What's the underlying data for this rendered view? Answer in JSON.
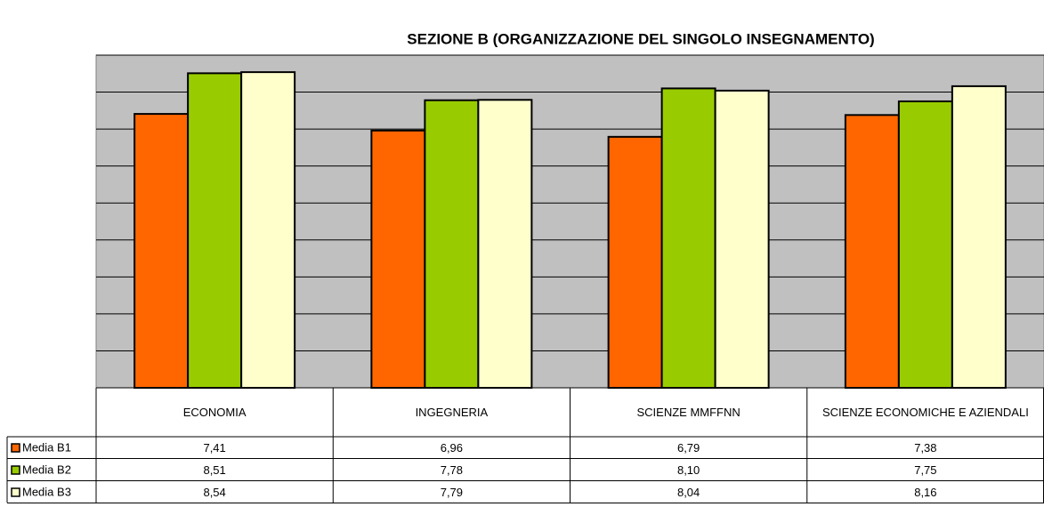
{
  "chart_data": {
    "type": "bar",
    "title": "SEZIONE B (ORGANIZZAZIONE DEL SINGOLO INSEGNAMENTO)",
    "categories": [
      "ECONOMIA",
      "INGEGNERIA",
      "SCIENZE MMFFNN",
      "SCIENZE ECONOMICHE E AZIENDALI"
    ],
    "series": [
      {
        "name": "Media B1",
        "color": "#ff6600",
        "values": [
          7.41,
          6.96,
          6.79,
          7.38
        ],
        "value_labels": [
          "7,41",
          "6,96",
          "6,79",
          "7,38"
        ]
      },
      {
        "name": "Media B2",
        "color": "#99cc00",
        "values": [
          8.51,
          7.78,
          8.1,
          7.75
        ],
        "value_labels": [
          "8,51",
          "7,78",
          "8,10",
          "7,75"
        ]
      },
      {
        "name": "Media B3",
        "color": "#ffffcc",
        "values": [
          8.54,
          7.79,
          8.04,
          8.16
        ],
        "value_labels": [
          "8,54",
          "7,79",
          "8,04",
          "8,16"
        ]
      }
    ],
    "ylim": [
      0,
      9
    ],
    "yticks": [
      0,
      1,
      2,
      3,
      4,
      5,
      6,
      7,
      8,
      9
    ],
    "grid": true,
    "background": "#c0c0c0"
  }
}
